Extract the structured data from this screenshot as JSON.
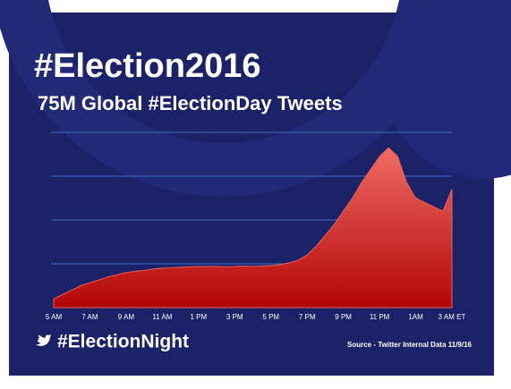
{
  "chart_data": {
    "type": "area",
    "title": "#Election2016",
    "subtitle": "75M Global #ElectionDay Tweets",
    "footer": "#ElectionNight",
    "source": "Source - Twitter Internal Data 11/9/16",
    "categories": [
      "5 AM",
      null,
      null,
      null,
      "7 AM",
      null,
      null,
      null,
      "9 AM",
      null,
      null,
      null,
      "11 AM",
      null,
      null,
      null,
      "1 PM",
      null,
      null,
      null,
      "3 PM",
      null,
      null,
      null,
      "5 PM",
      null,
      null,
      null,
      "7 PM",
      null,
      null,
      null,
      "9 PM",
      null,
      null,
      null,
      "11 PM",
      null,
      null,
      null,
      "1AM",
      null,
      null,
      null,
      "3 AM ET"
    ],
    "values": [
      0.2,
      0.3,
      0.4,
      0.5,
      0.57,
      0.63,
      0.7,
      0.75,
      0.8,
      0.83,
      0.85,
      0.88,
      0.9,
      0.91,
      0.92,
      0.93,
      0.94,
      0.94,
      0.94,
      0.93,
      0.94,
      0.95,
      0.94,
      0.95,
      0.96,
      0.98,
      1.02,
      1.08,
      1.2,
      1.4,
      1.65,
      1.9,
      2.2,
      2.5,
      2.85,
      3.15,
      3.45,
      3.65,
      3.45,
      2.85,
      2.5,
      2.4,
      2.3,
      2.2,
      2.7
    ],
    "color": "#e8605a",
    "ylim": [
      0,
      4
    ],
    "yticks": [
      1,
      2,
      3,
      4
    ],
    "grid": true
  }
}
